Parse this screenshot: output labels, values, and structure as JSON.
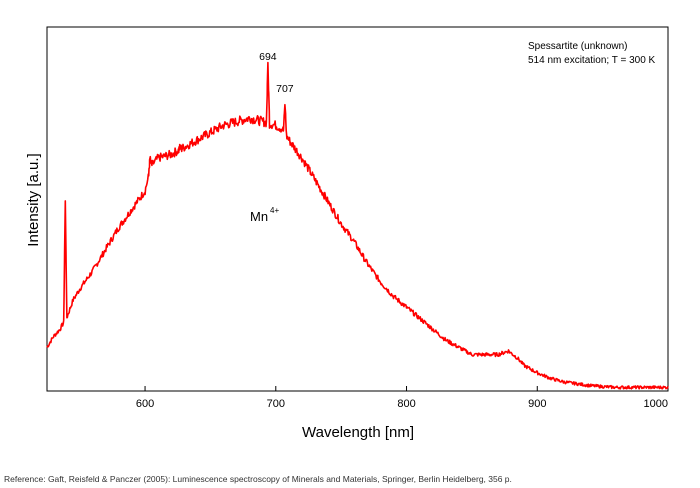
{
  "chart_data": {
    "type": "line",
    "xlabel": "Wavelength [nm]",
    "ylabel": "Intensity [a.u.]",
    "xlim": [
      525,
      1000
    ],
    "ylim": [
      0,
      1
    ],
    "y_ticks_labeled": false,
    "x_ticks": [
      600,
      700,
      800,
      900,
      1000
    ],
    "x_tick_labels": [
      "600",
      "700",
      "800",
      "900",
      "1000"
    ],
    "grid": false,
    "legend": "none",
    "annotation_lines": [
      "Spessartite (unknown)",
      "514 nm excitation; T = 300 K"
    ],
    "ion_label": "Mn",
    "ion_charge": "4+",
    "peak_labels": [
      {
        "text": "694",
        "x": 694
      },
      {
        "text": "707",
        "x": 707
      }
    ],
    "series": [
      {
        "color": "#ff0000",
        "x": [
          525,
          530,
          535,
          538,
          540,
          545,
          550,
          560,
          570,
          580,
          590,
          600,
          602,
          605,
          610,
          620,
          630,
          640,
          650,
          660,
          670,
          680,
          690,
          700,
          705,
          710,
          720,
          730,
          740,
          750,
          760,
          770,
          780,
          790,
          800,
          810,
          820,
          830,
          840,
          850,
          860,
          870,
          878,
          885,
          890,
          900,
          910,
          920,
          930,
          940,
          950,
          960,
          970,
          980,
          990,
          1000
        ],
        "y": [
          0.12,
          0.15,
          0.17,
          0.19,
          0.2,
          0.25,
          0.28,
          0.33,
          0.39,
          0.45,
          0.5,
          0.55,
          0.58,
          0.62,
          0.64,
          0.65,
          0.67,
          0.69,
          0.71,
          0.73,
          0.74,
          0.75,
          0.74,
          0.73,
          0.72,
          0.69,
          0.64,
          0.58,
          0.52,
          0.46,
          0.41,
          0.35,
          0.3,
          0.26,
          0.23,
          0.2,
          0.17,
          0.14,
          0.12,
          0.1,
          0.1,
          0.1,
          0.11,
          0.09,
          0.07,
          0.05,
          0.035,
          0.025,
          0.02,
          0.015,
          0.012,
          0.01,
          0.01,
          0.01,
          0.01,
          0.01
        ],
        "spikes": [
          {
            "x": 539,
            "y": 0.52
          },
          {
            "x": 604,
            "y": 0.64
          },
          {
            "x": 627,
            "y": 0.67
          },
          {
            "x": 694,
            "y": 0.9
          },
          {
            "x": 707,
            "y": 0.79
          }
        ]
      }
    ]
  },
  "footer": {
    "reference": "Reference: Gaft, Reisfeld & Panczer (2005): Luminescence spectroscopy of Minerals and Materials, Springer, Berlin Heidelberg, 356 p."
  }
}
